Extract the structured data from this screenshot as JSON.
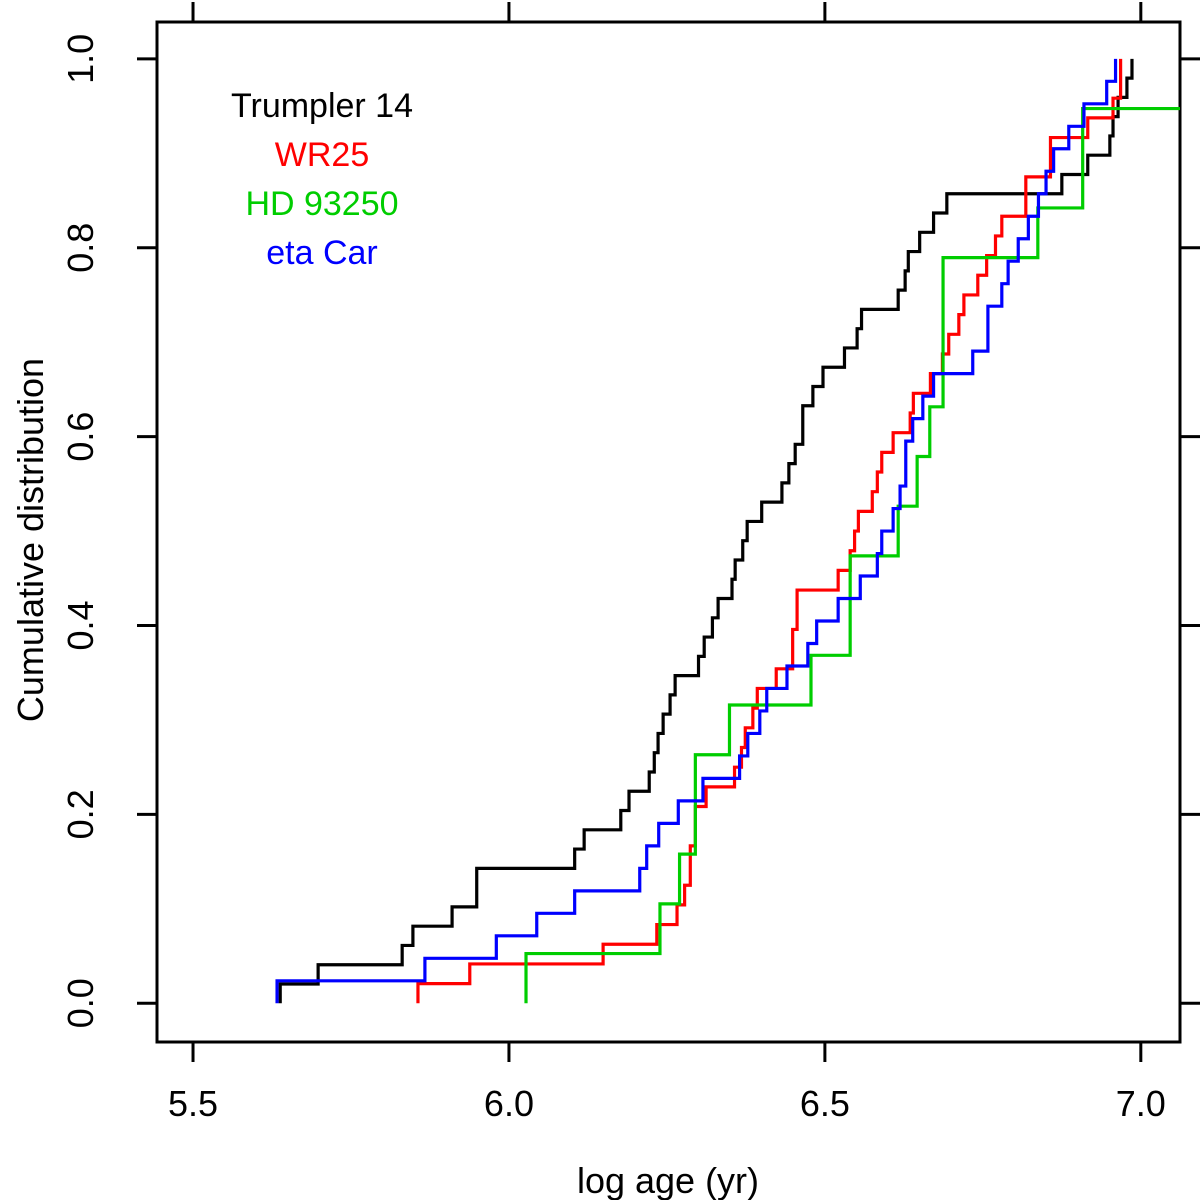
{
  "figure": {
    "background": "#ffffff",
    "axis_color": "#000000"
  },
  "chart_data": {
    "type": "line",
    "subtype": "empirical-cumulative-distribution-steps",
    "title": "",
    "xlabel": "log age (yr)",
    "ylabel": "Cumulative distribution",
    "xlim": [
      5.443,
      7.062
    ],
    "ylim": [
      -0.041,
      1.039
    ],
    "grid": false,
    "legend_position": "top-left",
    "x_ticks": {
      "values": [
        5.5,
        6.0,
        6.5,
        7.0
      ],
      "labels": [
        "5.5",
        "6.0",
        "6.5",
        "7.0"
      ]
    },
    "y_ticks": {
      "values": [
        0.0,
        0.2,
        0.4,
        0.6,
        0.8,
        1.0
      ],
      "labels": [
        "0.0",
        "0.2",
        "0.4",
        "0.6",
        "0.8",
        "1.0"
      ]
    },
    "series": [
      {
        "name": "Trumpler 14",
        "color": "#000000",
        "n": 49,
        "extend_to_right_edge": false,
        "log_ages": [
          5.638,
          5.698,
          5.831,
          5.848,
          5.91,
          5.949,
          5.949,
          6.104,
          6.119,
          6.177,
          6.19,
          6.222,
          6.23,
          6.236,
          6.244,
          6.255,
          6.263,
          6.3,
          6.309,
          6.322,
          6.331,
          6.353,
          6.358,
          6.37,
          6.377,
          6.4,
          6.432,
          6.443,
          6.453,
          6.465,
          6.465,
          6.481,
          6.497,
          6.531,
          6.551,
          6.558,
          6.616,
          6.627,
          6.632,
          6.65,
          6.672,
          6.693,
          6.875,
          6.916,
          6.951,
          6.956,
          6.964,
          6.978,
          6.986
        ]
      },
      {
        "name": "WR25",
        "color": "#FF0000",
        "n": 48,
        "extend_to_right_edge": false,
        "log_ages": [
          5.856,
          5.938,
          6.149,
          6.234,
          6.266,
          6.278,
          6.287,
          6.287,
          6.295,
          6.295,
          6.312,
          6.357,
          6.368,
          6.374,
          6.386,
          6.393,
          6.423,
          6.449,
          6.449,
          6.456,
          6.456,
          6.521,
          6.54,
          6.547,
          6.553,
          6.575,
          6.583,
          6.59,
          6.608,
          6.635,
          6.64,
          6.667,
          6.686,
          6.696,
          6.712,
          6.72,
          6.742,
          6.756,
          6.77,
          6.78,
          6.818,
          6.818,
          6.857,
          6.857,
          6.916,
          6.956,
          6.968,
          6.968
        ]
      },
      {
        "name": "HD 93250",
        "color": "#00CD00",
        "n": 19,
        "extend_to_right_edge": true,
        "log_ages": [
          6.027,
          6.239,
          6.27,
          6.295,
          6.295,
          6.349,
          6.478,
          6.54,
          6.54,
          6.616,
          6.646,
          6.666,
          6.687,
          6.687,
          6.687,
          6.837,
          6.908,
          6.908
        ]
      },
      {
        "name": "eta Car",
        "color": "#0000FF",
        "n": 42,
        "extend_to_right_edge": false,
        "log_ages": [
          5.633,
          5.867,
          5.98,
          6.044,
          6.104,
          6.207,
          6.218,
          6.237,
          6.268,
          6.307,
          6.365,
          6.378,
          6.397,
          6.408,
          6.44,
          6.473,
          6.487,
          6.521,
          6.556,
          6.583,
          6.59,
          6.608,
          6.619,
          6.628,
          6.628,
          6.639,
          6.655,
          6.672,
          6.734,
          6.758,
          6.758,
          6.78,
          6.79,
          6.806,
          6.822,
          6.838,
          6.85,
          6.862,
          6.886,
          6.91,
          6.946,
          6.96
        ]
      }
    ]
  }
}
